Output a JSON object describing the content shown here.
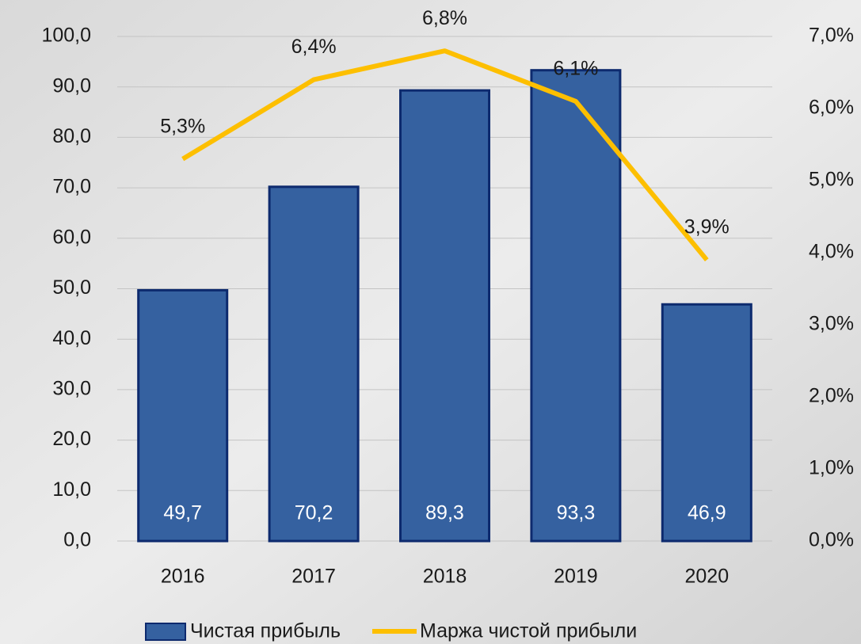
{
  "chart_data": {
    "type": "bar",
    "categories": [
      "2016",
      "2017",
      "2018",
      "2019",
      "2020"
    ],
    "series": [
      {
        "name": "Чистая прибыль",
        "type": "bar",
        "color": "#3561a0",
        "values": [
          49.7,
          70.2,
          89.3,
          93.3,
          46.9
        ],
        "value_labels": [
          "49,7",
          "70,2",
          "89,3",
          "93,3",
          "46,9"
        ]
      },
      {
        "name": "Маржа чистой прибыли",
        "type": "line",
        "axis": "y2",
        "color": "#fdbf00",
        "values": [
          5.3,
          6.4,
          6.8,
          6.1,
          3.9
        ],
        "value_labels": [
          "5,3%",
          "6,4%",
          "6,8%",
          "6,1%",
          "3,9%"
        ]
      }
    ],
    "ylim": [
      0,
      100
    ],
    "yticks": [
      {
        "value": 0,
        "label": "0,0"
      },
      {
        "value": 10,
        "label": "10,0"
      },
      {
        "value": 20,
        "label": "20,0"
      },
      {
        "value": 30,
        "label": "30,0"
      },
      {
        "value": 40,
        "label": "40,0"
      },
      {
        "value": 50,
        "label": "50,0"
      },
      {
        "value": 60,
        "label": "60,0"
      },
      {
        "value": 70,
        "label": "70,0"
      },
      {
        "value": 80,
        "label": "80,0"
      },
      {
        "value": 90,
        "label": "90,0"
      },
      {
        "value": 100,
        "label": "100,0"
      }
    ],
    "y2lim": [
      0,
      7
    ],
    "y2ticks": [
      {
        "value": 0,
        "label": "0,0%"
      },
      {
        "value": 1,
        "label": "1,0%"
      },
      {
        "value": 2,
        "label": "2,0%"
      },
      {
        "value": 3,
        "label": "3,0%"
      },
      {
        "value": 4,
        "label": "4,0%"
      },
      {
        "value": 5,
        "label": "5,0%"
      },
      {
        "value": 6,
        "label": "6,0%"
      },
      {
        "value": 7,
        "label": "7,0%"
      }
    ],
    "grid": true
  }
}
